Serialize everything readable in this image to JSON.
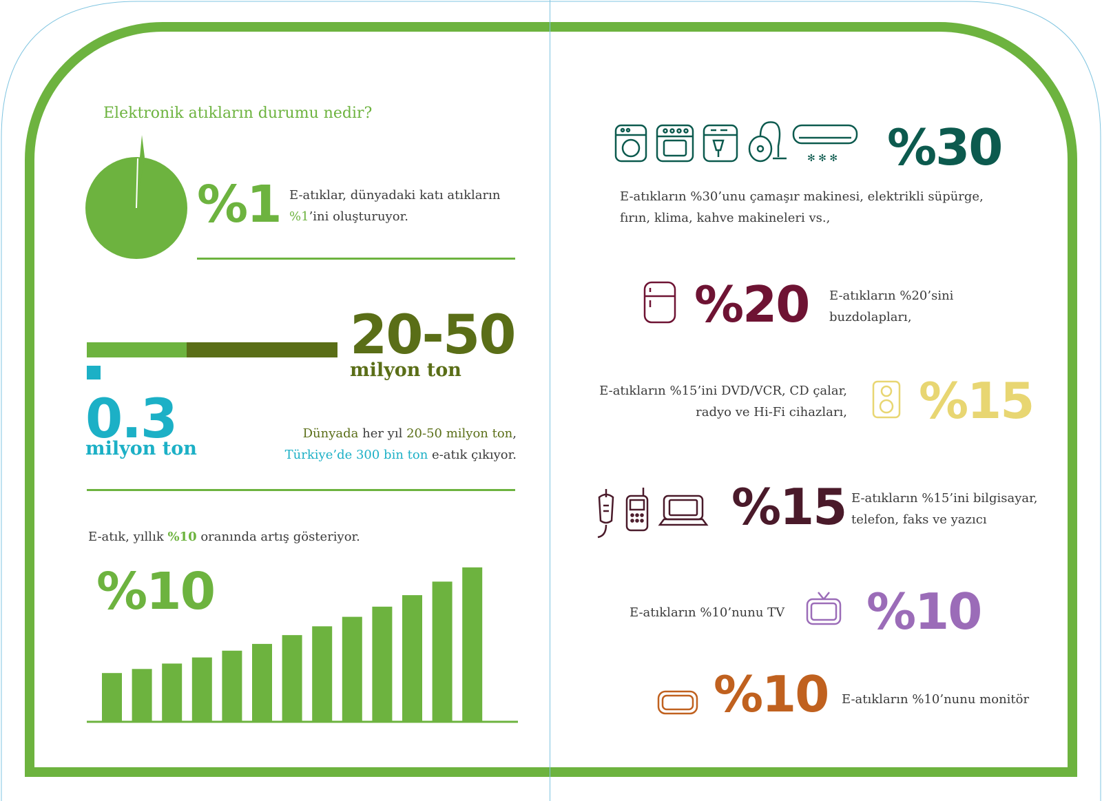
{
  "left": {
    "question": "Elektronik atıkların durumu nedir?",
    "share": {
      "big": "%1",
      "line1": "E-atıklar, dünyadaki katı atıkların",
      "line2_hl": "%1",
      "line2_rest": "’ini oluşturuyor.",
      "pie_fraction": 0.01,
      "pie_color": "#6db33f"
    },
    "amount": {
      "world_big": "20-50",
      "world_unit": "milyon ton",
      "turkey_big": "0.3",
      "turkey_unit": "milyon ton",
      "world_color": "#5a6e17",
      "turkey_color": "#1cb0c6",
      "line1_a": "Dünyada",
      "line1_b": " her yıl ",
      "line1_c": "20-50 milyon ton",
      "line1_d": ",",
      "line2_a": "Türkiye’de 300 bin ton",
      "line2_b": " e-atık çıkıyor."
    },
    "growth": {
      "text_a": "E-atık, yıllık ",
      "text_hl": "%10",
      "text_b": " oranında artış gösteriyor.",
      "big": "%10",
      "bar_color": "#6db33f"
    }
  },
  "right": {
    "items": [
      {
        "pct": "%30",
        "color": "#0c5a4e",
        "line1": "E-atıkların %30’unu çamaşır makinesi, elektrikli süpürge,",
        "line2": "fırın, klima, kahve makineleri vs.,"
      },
      {
        "pct": "%20",
        "color": "#6e1333",
        "line1": "E-atıkların %20’sini",
        "line2": "buzdolapları,"
      },
      {
        "pct": "%15",
        "color": "#e8d672",
        "line1": "E-atıkların %15’ini DVD/VCR, CD çalar,",
        "line2": "radyo ve Hi-Fi cihazları,"
      },
      {
        "pct": "%15",
        "color": "#4a1a2a",
        "line1": "E-atıkların %15’ini bilgisayar,",
        "line2": "telefon, faks ve yazıcı"
      },
      {
        "pct": "%10",
        "color": "#9b6cb8",
        "line1": "E-atıkların %10’nunu TV"
      },
      {
        "pct": "%10",
        "color": "#c0611f",
        "line1": "E-atıkların %10’nunu monitör"
      }
    ]
  },
  "chart_data": {
    "type": "bar",
    "categories": [
      "",
      "",
      "",
      "",
      "",
      "",
      "",
      "",
      "",
      "",
      "",
      "",
      ""
    ],
    "values": [
      72,
      78,
      86,
      95,
      105,
      115,
      128,
      141,
      155,
      170,
      187,
      207,
      228
    ],
    "ylim": [
      0,
      240
    ],
    "grid": false
  }
}
